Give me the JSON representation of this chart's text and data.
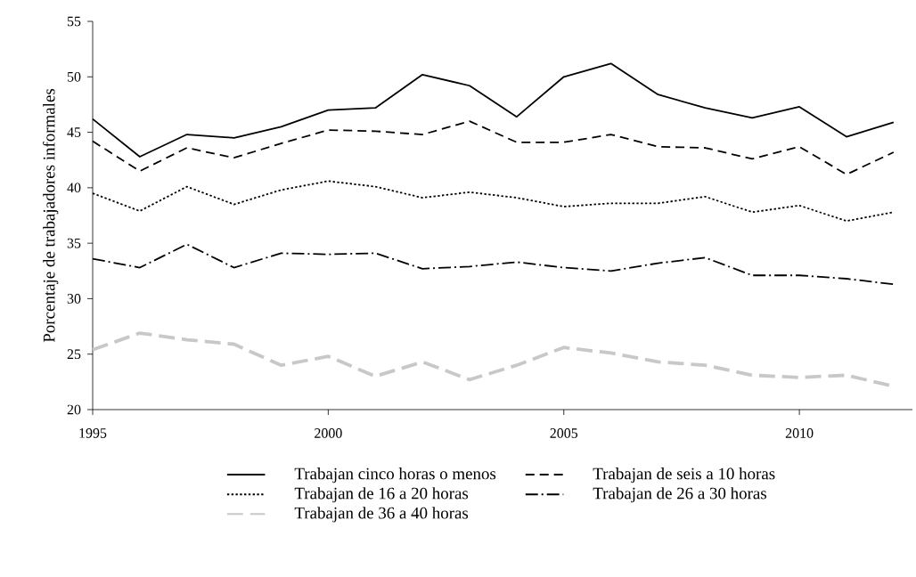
{
  "chart_data": {
    "type": "line",
    "ylabel": "Porcentaje de trabajadores informales",
    "x": [
      1995,
      1996,
      1997,
      1998,
      1999,
      2000,
      2001,
      2002,
      2003,
      2004,
      2005,
      2006,
      2007,
      2008,
      2009,
      2010,
      2011,
      2012
    ],
    "series": [
      {
        "name": "Trabajan cinco horas o menos",
        "color": "#000000",
        "line_style": "solid",
        "values": [
          46.2,
          42.8,
          44.8,
          44.5,
          45.5,
          47.0,
          47.2,
          50.2,
          49.2,
          46.4,
          50.0,
          51.2,
          48.4,
          47.2,
          46.3,
          47.3,
          44.6,
          45.9
        ]
      },
      {
        "name": "Trabajan de seis a 10 horas",
        "color": "#000000",
        "line_style": "dashed",
        "values": [
          44.2,
          41.5,
          43.6,
          42.7,
          44.0,
          45.2,
          45.1,
          44.8,
          46.0,
          44.1,
          44.1,
          44.8,
          43.7,
          43.6,
          42.6,
          43.7,
          41.2,
          43.2
        ]
      },
      {
        "name": "Trabajan de 16 a 20 horas",
        "color": "#000000",
        "line_style": "dotted",
        "values": [
          39.5,
          37.9,
          40.1,
          38.5,
          39.8,
          40.6,
          40.1,
          39.1,
          39.6,
          39.1,
          38.3,
          38.6,
          38.6,
          39.2,
          37.8,
          38.4,
          37.0,
          37.8
        ]
      },
      {
        "name": "Trabajan de 26 a 30 horas",
        "color": "#000000",
        "line_style": "dashdot",
        "values": [
          33.6,
          32.8,
          34.9,
          32.8,
          34.1,
          34.0,
          34.1,
          32.7,
          32.9,
          33.3,
          32.8,
          32.5,
          33.2,
          33.7,
          32.1,
          32.1,
          31.8,
          31.3
        ]
      },
      {
        "name": "Trabajan de 36 a 40 horas",
        "color": "#c8c8c8",
        "line_style": "dashed",
        "values": [
          25.4,
          26.9,
          26.3,
          25.9,
          24.0,
          24.8,
          23.0,
          24.3,
          22.7,
          24.0,
          25.6,
          25.1,
          24.3,
          24.0,
          23.1,
          22.9,
          23.1,
          22.1
        ]
      }
    ],
    "xlim": [
      1995,
      2012.4
    ],
    "ylim": [
      20,
      55
    ],
    "xticks": [
      1995,
      2000,
      2005,
      2010
    ],
    "yticks": [
      20,
      25,
      30,
      35,
      40,
      45,
      50,
      55
    ],
    "grid": false,
    "legend": "bottom",
    "marker": "none"
  }
}
